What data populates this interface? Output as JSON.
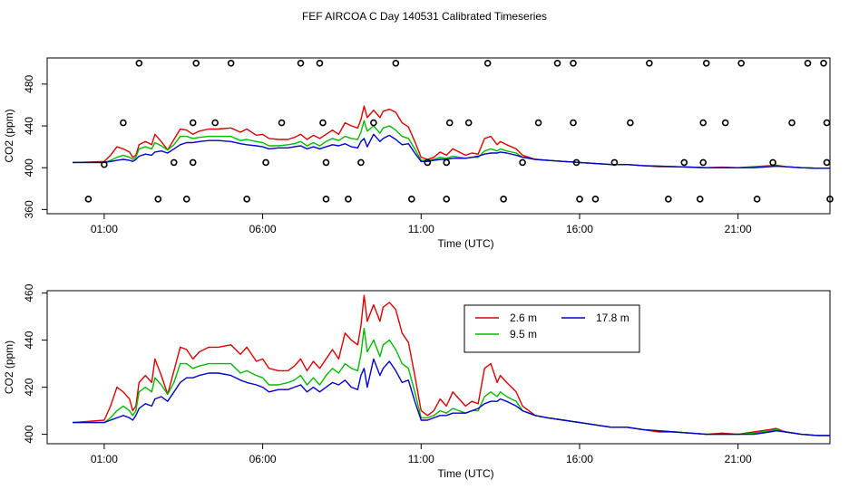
{
  "title": "FEF AIRCOA C  Day 140531  Calibrated Timeseries",
  "colors": {
    "red": "#dd0000",
    "green": "#00bb00",
    "blue": "#0000cc",
    "axis": "#000000"
  },
  "chart_data": [
    {
      "type": "scatter+line",
      "panel": "top",
      "xlabel": "Time (UTC)",
      "ylabel": "CO2 (ppm)",
      "xlim": [
        -0.8,
        23.9
      ],
      "ylim": [
        356,
        505
      ],
      "xticks": [
        1,
        6,
        11,
        16,
        21
      ],
      "xtick_labels": [
        "01:00",
        "06:00",
        "11:00",
        "16:00",
        "21:00"
      ],
      "yticks": [
        360,
        400,
        440,
        480
      ],
      "ytick_labels": [
        "360",
        "400",
        "440",
        "480"
      ],
      "calibration_points": [
        [
          0.5,
          370
        ],
        [
          1.0,
          403
        ],
        [
          1.6,
          443
        ],
        [
          2.1,
          500
        ],
        [
          2.7,
          370
        ],
        [
          3.2,
          405
        ],
        [
          3.6,
          370
        ],
        [
          3.8,
          405
        ],
        [
          3.8,
          443
        ],
        [
          3.9,
          500
        ],
        [
          4.5,
          443
        ],
        [
          5.0,
          500
        ],
        [
          5.5,
          370
        ],
        [
          6.1,
          405
        ],
        [
          6.6,
          443
        ],
        [
          7.2,
          500
        ],
        [
          7.8,
          500
        ],
        [
          7.9,
          443
        ],
        [
          8.0,
          405
        ],
        [
          8.0,
          370
        ],
        [
          8.7,
          370
        ],
        [
          9.1,
          405
        ],
        [
          9.5,
          443
        ],
        [
          10.2,
          500
        ],
        [
          10.7,
          370
        ],
        [
          11.2,
          405
        ],
        [
          11.8,
          370
        ],
        [
          11.8,
          405
        ],
        [
          11.9,
          443
        ],
        [
          12.5,
          443
        ],
        [
          13.1,
          500
        ],
        [
          13.6,
          370
        ],
        [
          14.2,
          405
        ],
        [
          14.7,
          443
        ],
        [
          15.3,
          500
        ],
        [
          15.8,
          500
        ],
        [
          15.8,
          443
        ],
        [
          15.9,
          405
        ],
        [
          16.0,
          370
        ],
        [
          16.5,
          370
        ],
        [
          17.1,
          405
        ],
        [
          17.6,
          443
        ],
        [
          18.2,
          500
        ],
        [
          18.8,
          370
        ],
        [
          19.3,
          405
        ],
        [
          19.8,
          370
        ],
        [
          19.9,
          405
        ],
        [
          19.9,
          443
        ],
        [
          20.0,
          500
        ],
        [
          20.6,
          443
        ],
        [
          21.1,
          500
        ],
        [
          21.6,
          370
        ],
        [
          22.1,
          405
        ],
        [
          22.7,
          443
        ],
        [
          23.2,
          500
        ],
        [
          23.7,
          500
        ],
        [
          23.8,
          443
        ],
        [
          23.8,
          405
        ],
        [
          23.9,
          370
        ]
      ]
    },
    {
      "type": "line",
      "panel": "bottom",
      "xlabel": "Time (UTC)",
      "ylabel": "CO2 (ppm)",
      "xlim": [
        -0.8,
        23.9
      ],
      "ylim": [
        396,
        461
      ],
      "xticks": [
        1,
        6,
        11,
        16,
        21
      ],
      "xtick_labels": [
        "01:00",
        "06:00",
        "11:00",
        "16:00",
        "21:00"
      ],
      "yticks": [
        400,
        420,
        440,
        460
      ],
      "ytick_labels": [
        "400",
        "420",
        "440",
        "460"
      ],
      "legend": {
        "position": "top-center",
        "entries": [
          "2.6 m",
          "9.5 m",
          "17.8 m"
        ]
      }
    }
  ],
  "series": [
    {
      "name": "2.6 m",
      "color_key": "red",
      "points": [
        [
          0,
          405
        ],
        [
          0.5,
          405.5
        ],
        [
          1.0,
          406
        ],
        [
          1.2,
          412
        ],
        [
          1.4,
          420
        ],
        [
          1.6,
          418
        ],
        [
          1.8,
          415
        ],
        [
          1.9,
          410
        ],
        [
          2.0,
          412
        ],
        [
          2.1,
          422
        ],
        [
          2.3,
          425
        ],
        [
          2.5,
          422
        ],
        [
          2.6,
          432
        ],
        [
          2.8,
          425
        ],
        [
          3.0,
          417
        ],
        [
          3.2,
          427
        ],
        [
          3.4,
          437
        ],
        [
          3.6,
          436
        ],
        [
          3.8,
          432
        ],
        [
          4.0,
          435
        ],
        [
          4.3,
          437
        ],
        [
          4.6,
          437
        ],
        [
          5.0,
          438
        ],
        [
          5.3,
          434
        ],
        [
          5.5,
          437
        ],
        [
          5.8,
          431
        ],
        [
          6.0,
          432
        ],
        [
          6.2,
          428
        ],
        [
          6.5,
          427
        ],
        [
          6.8,
          427
        ],
        [
          7.0,
          429
        ],
        [
          7.2,
          432
        ],
        [
          7.4,
          427
        ],
        [
          7.6,
          431
        ],
        [
          7.8,
          428
        ],
        [
          8.0,
          432
        ],
        [
          8.2,
          436
        ],
        [
          8.4,
          432
        ],
        [
          8.6,
          443
        ],
        [
          8.8,
          440
        ],
        [
          9.0,
          438
        ],
        [
          9.1,
          446
        ],
        [
          9.2,
          459
        ],
        [
          9.3,
          448
        ],
        [
          9.5,
          455
        ],
        [
          9.7,
          448
        ],
        [
          9.8,
          454
        ],
        [
          10.0,
          456
        ],
        [
          10.2,
          453
        ],
        [
          10.4,
          443
        ],
        [
          10.6,
          439
        ],
        [
          10.8,
          425
        ],
        [
          11.0,
          410
        ],
        [
          11.2,
          408
        ],
        [
          11.4,
          410
        ],
        [
          11.6,
          415
        ],
        [
          11.8,
          412
        ],
        [
          12.0,
          418
        ],
        [
          12.2,
          415
        ],
        [
          12.4,
          412
        ],
        [
          12.6,
          414
        ],
        [
          12.8,
          413
        ],
        [
          13.0,
          428
        ],
        [
          13.2,
          430
        ],
        [
          13.4,
          422
        ],
        [
          13.5,
          425
        ],
        [
          13.7,
          422
        ],
        [
          14.0,
          418
        ],
        [
          14.2,
          412
        ],
        [
          14.4,
          410
        ],
        [
          14.6,
          408
        ],
        [
          15.0,
          407
        ],
        [
          15.5,
          406
        ],
        [
          16.0,
          405
        ],
        [
          16.5,
          404
        ],
        [
          17.0,
          403
        ],
        [
          17.5,
          403
        ],
        [
          18.0,
          402
        ],
        [
          18.5,
          401
        ],
        [
          19.0,
          401
        ],
        [
          19.5,
          400.5
        ],
        [
          20.0,
          400
        ],
        [
          20.5,
          400.5
        ],
        [
          21.0,
          400
        ],
        [
          21.5,
          401
        ],
        [
          22.0,
          402
        ],
        [
          22.2,
          402.5
        ],
        [
          22.5,
          401
        ],
        [
          23.0,
          400
        ],
        [
          23.5,
          399.5
        ],
        [
          23.9,
          399.5
        ]
      ]
    },
    {
      "name": "9.5 m",
      "color_key": "green",
      "points": [
        [
          0,
          405
        ],
        [
          0.5,
          405
        ],
        [
          1.0,
          405
        ],
        [
          1.2,
          407
        ],
        [
          1.4,
          410
        ],
        [
          1.6,
          412
        ],
        [
          1.8,
          410
        ],
        [
          1.9,
          408
        ],
        [
          2.0,
          410
        ],
        [
          2.1,
          418
        ],
        [
          2.3,
          420
        ],
        [
          2.5,
          418
        ],
        [
          2.6,
          424
        ],
        [
          2.8,
          421
        ],
        [
          3.0,
          417
        ],
        [
          3.2,
          422
        ],
        [
          3.4,
          430
        ],
        [
          3.6,
          430
        ],
        [
          3.8,
          428
        ],
        [
          4.0,
          429
        ],
        [
          4.3,
          430
        ],
        [
          4.6,
          430
        ],
        [
          5.0,
          430
        ],
        [
          5.3,
          426
        ],
        [
          5.5,
          427
        ],
        [
          5.8,
          425
        ],
        [
          6.0,
          424
        ],
        [
          6.2,
          421
        ],
        [
          6.5,
          421
        ],
        [
          6.8,
          422
        ],
        [
          7.0,
          423
        ],
        [
          7.2,
          425
        ],
        [
          7.4,
          421
        ],
        [
          7.6,
          424
        ],
        [
          7.8,
          421
        ],
        [
          8.0,
          425
        ],
        [
          8.2,
          428
        ],
        [
          8.4,
          426
        ],
        [
          8.6,
          430
        ],
        [
          8.8,
          428
        ],
        [
          9.0,
          427
        ],
        [
          9.1,
          434
        ],
        [
          9.2,
          445
        ],
        [
          9.3,
          435
        ],
        [
          9.5,
          440
        ],
        [
          9.7,
          433
        ],
        [
          9.8,
          438
        ],
        [
          10.0,
          440
        ],
        [
          10.2,
          436
        ],
        [
          10.4,
          430
        ],
        [
          10.6,
          428
        ],
        [
          10.8,
          418
        ],
        [
          11.0,
          407
        ],
        [
          11.2,
          407
        ],
        [
          11.4,
          408
        ],
        [
          11.6,
          410
        ],
        [
          11.8,
          409
        ],
        [
          12.0,
          411
        ],
        [
          12.2,
          410
        ],
        [
          12.4,
          409
        ],
        [
          12.6,
          410
        ],
        [
          12.8,
          410
        ],
        [
          13.0,
          416
        ],
        [
          13.2,
          418
        ],
        [
          13.4,
          416
        ],
        [
          13.5,
          418
        ],
        [
          13.7,
          416
        ],
        [
          14.0,
          414
        ],
        [
          14.2,
          410
        ],
        [
          14.4,
          409
        ],
        [
          14.6,
          408
        ],
        [
          15.0,
          407
        ],
        [
          15.5,
          406
        ],
        [
          16.0,
          405
        ],
        [
          16.5,
          404
        ],
        [
          17.0,
          403
        ],
        [
          17.5,
          403
        ],
        [
          18.0,
          402
        ],
        [
          18.5,
          401.5
        ],
        [
          19.0,
          401
        ],
        [
          19.5,
          400.5
        ],
        [
          20.0,
          400
        ],
        [
          20.5,
          400
        ],
        [
          21.0,
          400
        ],
        [
          21.5,
          400.5
        ],
        [
          22.0,
          401.5
        ],
        [
          22.2,
          402
        ],
        [
          22.5,
          401
        ],
        [
          23.0,
          400
        ],
        [
          23.5,
          399.5
        ],
        [
          23.9,
          399.5
        ]
      ]
    },
    {
      "name": "17.8 m",
      "color_key": "blue",
      "points": [
        [
          0,
          405
        ],
        [
          0.5,
          405
        ],
        [
          1.0,
          405
        ],
        [
          1.2,
          406
        ],
        [
          1.4,
          407
        ],
        [
          1.6,
          408
        ],
        [
          1.8,
          407
        ],
        [
          1.9,
          406
        ],
        [
          2.0,
          408
        ],
        [
          2.1,
          411
        ],
        [
          2.3,
          413
        ],
        [
          2.5,
          412
        ],
        [
          2.6,
          415
        ],
        [
          2.8,
          416
        ],
        [
          3.0,
          414
        ],
        [
          3.2,
          418
        ],
        [
          3.4,
          422
        ],
        [
          3.6,
          424
        ],
        [
          3.8,
          424
        ],
        [
          4.0,
          425
        ],
        [
          4.3,
          426
        ],
        [
          4.6,
          426
        ],
        [
          5.0,
          425
        ],
        [
          5.3,
          423
        ],
        [
          5.5,
          422
        ],
        [
          5.8,
          421
        ],
        [
          6.0,
          420
        ],
        [
          6.2,
          418
        ],
        [
          6.5,
          419
        ],
        [
          6.8,
          419
        ],
        [
          7.0,
          420
        ],
        [
          7.2,
          421
        ],
        [
          7.4,
          418
        ],
        [
          7.6,
          420
        ],
        [
          7.8,
          418
        ],
        [
          8.0,
          420
        ],
        [
          8.2,
          422
        ],
        [
          8.4,
          421
        ],
        [
          8.6,
          423
        ],
        [
          8.8,
          420
        ],
        [
          9.0,
          419
        ],
        [
          9.1,
          425
        ],
        [
          9.2,
          428
        ],
        [
          9.3,
          420
        ],
        [
          9.5,
          432
        ],
        [
          9.7,
          425
        ],
        [
          9.8,
          428
        ],
        [
          10.0,
          431
        ],
        [
          10.2,
          427
        ],
        [
          10.4,
          422
        ],
        [
          10.6,
          423
        ],
        [
          10.8,
          414
        ],
        [
          11.0,
          406
        ],
        [
          11.2,
          406
        ],
        [
          11.4,
          407
        ],
        [
          11.6,
          408
        ],
        [
          11.8,
          408
        ],
        [
          12.0,
          409
        ],
        [
          12.2,
          409
        ],
        [
          12.4,
          409
        ],
        [
          12.6,
          410
        ],
        [
          12.8,
          411
        ],
        [
          13.0,
          413
        ],
        [
          13.2,
          414
        ],
        [
          13.4,
          414
        ],
        [
          13.5,
          415
        ],
        [
          13.7,
          414
        ],
        [
          14.0,
          412
        ],
        [
          14.2,
          410
        ],
        [
          14.4,
          409
        ],
        [
          14.6,
          408
        ],
        [
          15.0,
          407
        ],
        [
          15.5,
          406
        ],
        [
          16.0,
          405
        ],
        [
          16.5,
          404
        ],
        [
          17.0,
          403
        ],
        [
          17.5,
          403
        ],
        [
          18.0,
          402
        ],
        [
          18.5,
          401.5
        ],
        [
          19.0,
          401
        ],
        [
          19.5,
          400.5
        ],
        [
          20.0,
          400
        ],
        [
          20.5,
          400
        ],
        [
          21.0,
          400
        ],
        [
          21.5,
          400
        ],
        [
          22.0,
          401
        ],
        [
          22.2,
          401.5
        ],
        [
          22.5,
          401
        ],
        [
          23.0,
          400
        ],
        [
          23.5,
          399.5
        ],
        [
          23.9,
          399.5
        ]
      ]
    }
  ]
}
